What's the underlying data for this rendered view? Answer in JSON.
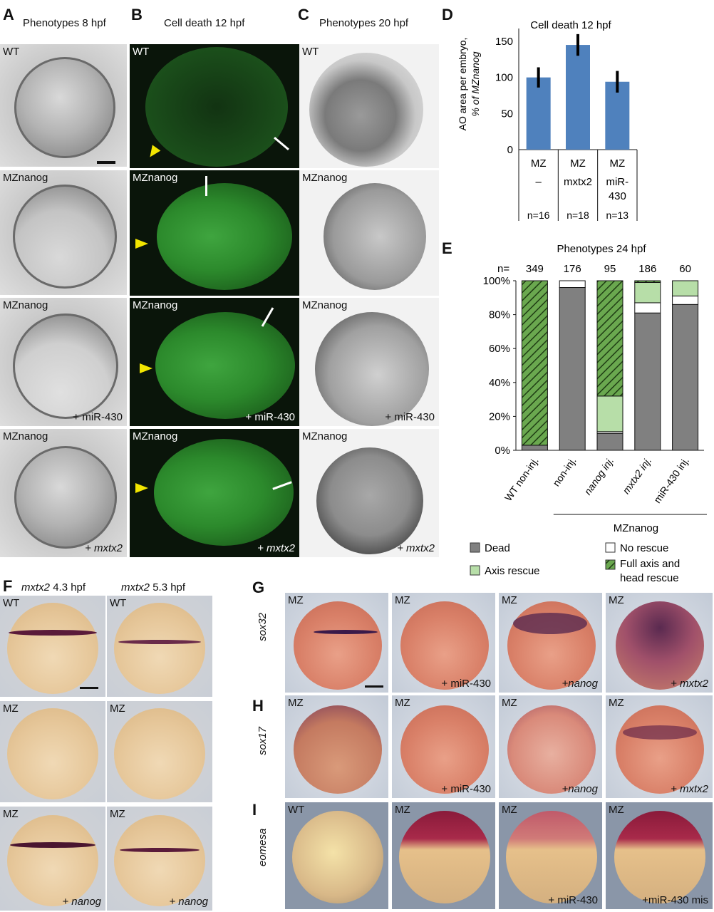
{
  "panels": {
    "A": {
      "letter": "A",
      "title": "Phenotypes 8 hpf",
      "tiles": [
        {
          "top": "WT",
          "bottom": ""
        },
        {
          "top": "MZnanog",
          "bottom": ""
        },
        {
          "top": "MZnanog",
          "bottom": "+ miR-430"
        },
        {
          "top": "MZnanog",
          "bottom": "+ mxtx2"
        }
      ]
    },
    "B": {
      "letter": "B",
      "title": "Cell death 12 hpf",
      "tiles": [
        {
          "top": "WT",
          "bottom": ""
        },
        {
          "top": "MZnanog",
          "bottom": ""
        },
        {
          "top": "MZnanog",
          "bottom": "+ miR-430"
        },
        {
          "top": "MZnanog",
          "bottom": "+ mxtx2"
        }
      ]
    },
    "C": {
      "letter": "C",
      "title": "Phenotypes 20 hpf",
      "tiles": [
        {
          "top": "WT",
          "bottom": ""
        },
        {
          "top": "MZnanog",
          "bottom": ""
        },
        {
          "top": "MZnanog",
          "bottom": "+ miR-430"
        },
        {
          "top": "MZnanog",
          "bottom": "+ mxtx2"
        }
      ]
    },
    "F": {
      "letter": "F",
      "col_titles": [
        {
          "gene": "mxtx2",
          "stage": "4.3 hpf"
        },
        {
          "gene": "mxtx2",
          "stage": "5.3 hpf"
        }
      ],
      "tiles": [
        {
          "top": "WT",
          "bottom": ""
        },
        {
          "top": "WT",
          "bottom": ""
        },
        {
          "top": "MZ",
          "bottom": ""
        },
        {
          "top": "MZ",
          "bottom": ""
        },
        {
          "top": "MZ",
          "bottom": "+ nanog"
        },
        {
          "top": "MZ",
          "bottom": "+ nanog"
        }
      ]
    },
    "G": {
      "letter": "G",
      "gene": "sox32",
      "tiles": [
        {
          "top": "MZ",
          "bottom": ""
        },
        {
          "top": "MZ",
          "bottom": "+ miR-430"
        },
        {
          "top": "MZ",
          "bottom": "+nanog"
        },
        {
          "top": "MZ",
          "bottom": "+ mxtx2"
        }
      ]
    },
    "H": {
      "letter": "H",
      "gene": "sox17",
      "tiles": [
        {
          "top": "MZ",
          "bottom": ""
        },
        {
          "top": "MZ",
          "bottom": "+ miR-430"
        },
        {
          "top": "MZ",
          "bottom": "+nanog"
        },
        {
          "top": "MZ",
          "bottom": "+ mxtx2"
        }
      ]
    },
    "I": {
      "letter": "I",
      "gene": "eomesa",
      "tiles": [
        {
          "top": "WT",
          "bottom": ""
        },
        {
          "top": "MZ",
          "bottom": ""
        },
        {
          "top": "MZ",
          "bottom": "+ miR-430"
        },
        {
          "top": "MZ",
          "bottom": "+miR-430 mis"
        }
      ]
    }
  },
  "chart_data": [
    {
      "panel": "D",
      "type": "bar",
      "title": "Cell death 12 hpf",
      "ylabel_line1": "AO area per embryo,",
      "ylabel_line2": "% of MZnanog",
      "ylim": [
        0,
        150
      ],
      "yticks": [
        "0",
        "50",
        "100",
        "150"
      ],
      "categories": [
        {
          "row1": "MZ",
          "row2": "–",
          "row3": "",
          "n": "n=16"
        },
        {
          "row1": "MZ",
          "row2": "mxtx2",
          "row3": "",
          "n": "n=18"
        },
        {
          "row1": "MZ",
          "row2": "miR-",
          "row3": "430",
          "n": "n=13"
        }
      ],
      "values": [
        100,
        145,
        94
      ],
      "errors": [
        14,
        15,
        15
      ],
      "bar_color": "#4f81bd"
    },
    {
      "panel": "E",
      "type": "bar",
      "stacked": true,
      "title": "Phenotypes 24 hpf",
      "n_prefix": "n=",
      "n_values": [
        "349",
        "176",
        "95",
        "186",
        "60"
      ],
      "categories": [
        "WT non-inj.",
        "non-inj.",
        "nanog inj.",
        "mxtx2 inj.",
        "miR-430 inj."
      ],
      "group_label": "MZnanog",
      "ylim": [
        0,
        100
      ],
      "yticks": [
        "0%",
        "20%",
        "40%",
        "60%",
        "80%",
        "100%"
      ],
      "series": [
        {
          "name": "Dead",
          "color": "#808080",
          "values": [
            3,
            96,
            10,
            81,
            86
          ]
        },
        {
          "name": "No rescue",
          "color": "#ffffff",
          "values": [
            0,
            4,
            1,
            6,
            5
          ]
        },
        {
          "name": "Axis rescue",
          "color": "#b7dea8",
          "values": [
            0,
            0,
            21,
            12,
            9
          ]
        },
        {
          "name": "Full axis and head rescue",
          "color": "#6aa84f",
          "values": [
            97,
            0,
            68,
            1,
            0
          ]
        }
      ],
      "legend": [
        {
          "label": "Dead"
        },
        {
          "label": "No rescue"
        },
        {
          "label": "Axis rescue"
        },
        {
          "label": "Full axis and",
          "label2": "head rescue"
        }
      ]
    }
  ]
}
